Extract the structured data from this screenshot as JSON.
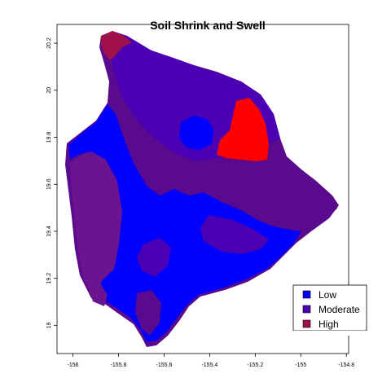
{
  "map": {
    "title": "Soil Shrink and Swell",
    "x_axis": {
      "ticks": [
        {
          "value": -156,
          "label": "-156"
        },
        {
          "value": -155.8,
          "label": "-155.8"
        },
        {
          "value": -155.6,
          "label": "-155.6"
        },
        {
          "value": -155.4,
          "label": "-155.4"
        },
        {
          "value": -155.2,
          "label": "-155.2"
        },
        {
          "value": -155,
          "label": "-155"
        },
        {
          "value": -154.8,
          "label": "-154.8"
        }
      ],
      "range": [
        -156.07,
        -154.79
      ]
    },
    "y_axis": {
      "ticks": [
        {
          "value": 19,
          "label": "19"
        },
        {
          "value": 19.2,
          "label": "19.2"
        },
        {
          "value": 19.4,
          "label": "19.4"
        },
        {
          "value": 19.6,
          "label": "19.6"
        },
        {
          "value": 19.8,
          "label": "19.8"
        },
        {
          "value": 20,
          "label": "20"
        },
        {
          "value": 20.2,
          "label": "20.2"
        }
      ],
      "range": [
        18.88,
        20.28
      ]
    },
    "legend": {
      "items": [
        {
          "label": "Low",
          "color": "#0000ff"
        },
        {
          "label": "Moderate",
          "color": "#4b00b4"
        },
        {
          "label": "High",
          "color": "#a0104a"
        }
      ]
    },
    "colors": {
      "low": "#0000ff",
      "moderate": "#4b00b4",
      "moderate_dark": "#5a0a8c",
      "high": "#a0104a",
      "very_high": "#ff0000"
    }
  }
}
